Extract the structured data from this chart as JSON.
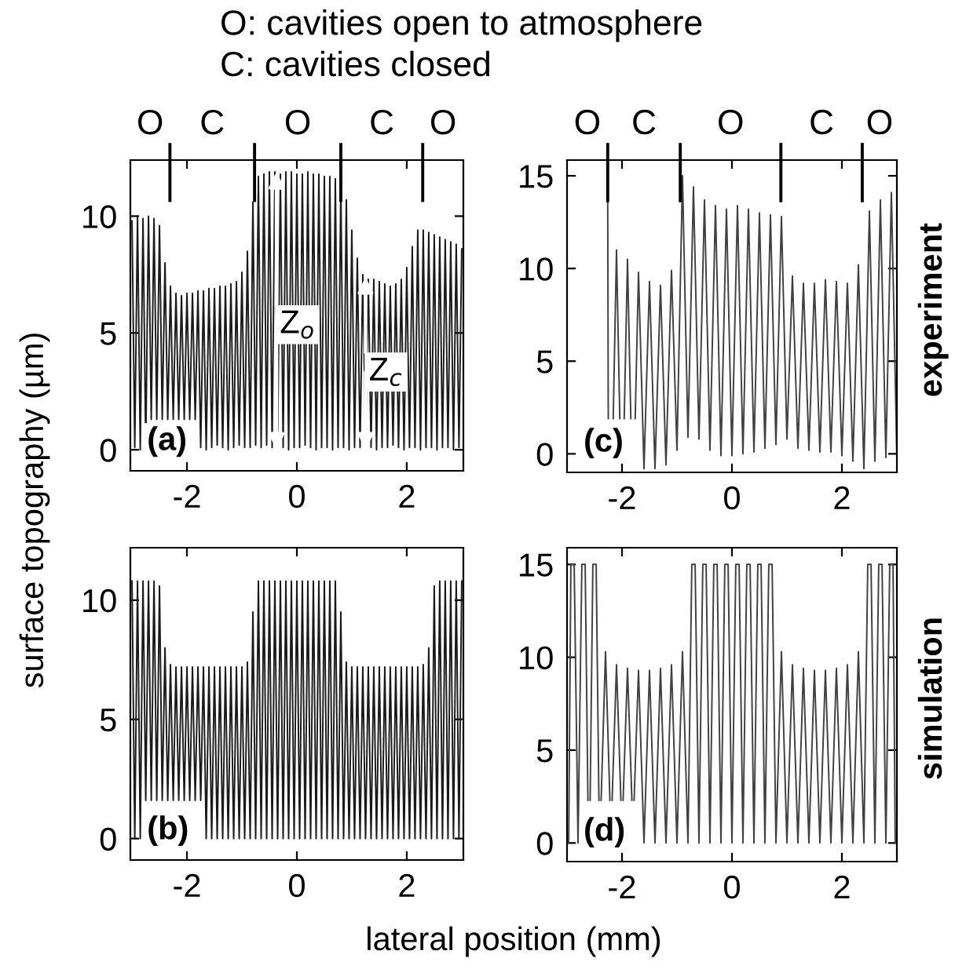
{
  "chart_data": [
    {
      "type": "line",
      "title": "O: cavities open to atmosphere\nC: cavities closed",
      "ylabel": "surface topography (µm)",
      "x": [
        -3.0,
        -2.95,
        -2.9,
        -2.85,
        -2.8,
        -2.75,
        -2.7,
        -2.65,
        -2.6,
        -2.55,
        -2.5,
        -2.45,
        -2.4,
        -2.35,
        -2.3,
        -2.25,
        -2.2,
        -2.15,
        -2.1,
        -2.05,
        -2.0,
        -1.95,
        -1.9,
        -1.85,
        -1.8,
        -1.75,
        -1.7,
        -1.65,
        -1.6,
        -1.55,
        -1.5,
        -1.45,
        -1.4,
        -1.35,
        -1.3,
        -1.25,
        -1.2,
        -1.15,
        -1.1,
        -1.05,
        -1.0,
        -0.95,
        -0.9,
        -0.85,
        -0.8,
        -0.75,
        -0.7,
        -0.65,
        -0.6,
        -0.55,
        -0.5,
        -0.45,
        -0.4,
        -0.35,
        -0.3,
        -0.25,
        -0.2,
        -0.15,
        -0.1,
        -0.05,
        0.0,
        0.05,
        0.1,
        0.15,
        0.2,
        0.25,
        0.3,
        0.35,
        0.4,
        0.45,
        0.5,
        0.55,
        0.6,
        0.65,
        0.7,
        0.75,
        0.8,
        0.85,
        0.9,
        0.95,
        1.0,
        1.05,
        1.1,
        1.15,
        1.2,
        1.25,
        1.3,
        1.35,
        1.4,
        1.45,
        1.5,
        1.55,
        1.6,
        1.65,
        1.7,
        1.75,
        1.8,
        1.85,
        1.9,
        1.95,
        2.0,
        2.05,
        2.1,
        2.15,
        2.2,
        2.25,
        2.3,
        2.35,
        2.4,
        2.45,
        2.5,
        2.55,
        2.6,
        2.65,
        2.7,
        2.75,
        2.8,
        2.85,
        2.9,
        2.95,
        3.0
      ],
      "series": [
        {
          "color": "#1a1a1a",
          "values": [
            9.8,
            0.1,
            10.0,
            0.0,
            9.9,
            0.1,
            10.0,
            1.3,
            9.9,
            1.3,
            9.6,
            1.3,
            8.0,
            1.3,
            7.0,
            1.3,
            6.7,
            1.3,
            6.6,
            1.3,
            6.7,
            1.3,
            6.7,
            1.3,
            6.8,
            0.1,
            6.8,
            0.0,
            6.9,
            0.1,
            6.9,
            0.2,
            7.0,
            0.1,
            7.0,
            0.0,
            7.1,
            0.1,
            7.2,
            0.2,
            7.6,
            0.1,
            8.5,
            0.1,
            10.6,
            0.2,
            11.7,
            0.1,
            11.8,
            0.2,
            11.9,
            0.1,
            11.9,
            0.2,
            11.8,
            0.1,
            11.9,
            0.0,
            11.9,
            0.1,
            11.8,
            0.1,
            11.8,
            0.2,
            11.9,
            0.1,
            11.8,
            0.0,
            11.8,
            0.1,
            11.7,
            0.1,
            11.7,
            0.0,
            11.6,
            0.1,
            11.3,
            0.1,
            10.7,
            0.0,
            9.4,
            0.1,
            8.2,
            0.1,
            7.5,
            0.2,
            7.3,
            0.1,
            7.3,
            0.0,
            7.2,
            0.1,
            7.1,
            0.1,
            7.0,
            0.2,
            7.1,
            0.1,
            7.3,
            0.0,
            7.8,
            0.1,
            8.7,
            0.1,
            9.4,
            0.0,
            9.4,
            0.1,
            9.3,
            0.1,
            9.2,
            0.0,
            9.1,
            0.1,
            9.0,
            0.1,
            8.9,
            0.0,
            8.8,
            0.1,
            8.6
          ]
        }
      ],
      "xlim": [
        -3.03,
        3.03
      ],
      "ylim": [
        -0.9,
        12.4
      ],
      "xticks": [
        -2,
        0,
        2
      ],
      "yticks": [
        0,
        5,
        10
      ],
      "ref_lines": [
        {
          "axis": "x",
          "value": -2.31
        },
        {
          "axis": "x",
          "value": -0.77
        },
        {
          "axis": "x",
          "value": 0.8
        },
        {
          "axis": "x",
          "value": 2.29
        }
      ],
      "annotations": [
        "(a)",
        "O",
        "C",
        "O",
        "C",
        "O",
        {
          "text": "Z$_{o}$",
          "x": -0.37,
          "y": 11.9
        },
        {
          "text": "Z$_{c}$",
          "x": 1.25,
          "y": 7.4
        }
      ]
    },
    {
      "type": "line",
      "x": [
        -2.26,
        -2.25,
        -2.2,
        -2.16,
        -2.1,
        -2.04,
        -2.0,
        -1.96,
        -1.9,
        -1.84,
        -1.8,
        -1.76,
        -1.7,
        -1.6,
        -1.5,
        -1.4,
        -1.3,
        -1.2,
        -1.1,
        -1.0,
        -0.9,
        -0.8,
        -0.7,
        -0.6,
        -0.5,
        -0.4,
        -0.3,
        -0.2,
        -0.1,
        0.0,
        0.1,
        0.2,
        0.3,
        0.4,
        0.5,
        0.6,
        0.7,
        0.8,
        0.9,
        1.0,
        1.1,
        1.2,
        1.3,
        1.4,
        1.5,
        1.6,
        1.7,
        1.8,
        1.9,
        2.0,
        2.1,
        2.2,
        2.3,
        2.4,
        2.5,
        2.6,
        2.7,
        2.8,
        2.9,
        3.0
      ],
      "series": [
        {
          "color": "#404040",
          "values": [
            13.8,
            1.9,
            null,
            1.9,
            11.0,
            1.9,
            null,
            1.9,
            10.5,
            1.9,
            null,
            1.9,
            9.8,
            -0.8,
            9.3,
            -0.8,
            9.1,
            -0.6,
            9.9,
            0.2,
            15.0,
            0.9,
            14.4,
            0.8,
            13.7,
            0.2,
            13.4,
            -0.1,
            13.2,
            -0.1,
            13.4,
            0.0,
            13.2,
            0.1,
            13.0,
            0.3,
            12.9,
            0.5,
            12.8,
            0.8,
            9.6,
            0.3,
            9.2,
            0.2,
            9.2,
            0.1,
            9.4,
            0.1,
            9.3,
            -0.1,
            9.2,
            -0.4,
            10.2,
            -0.8,
            13.1,
            -0.4,
            13.7,
            -0.2,
            14.1,
            -0.2
          ]
        }
      ],
      "xlim": [
        -3.0,
        3.0
      ],
      "ylim": [
        -1.0,
        15.85
      ],
      "xticks": [
        -2,
        0,
        2
      ],
      "yticks": [
        0,
        5,
        10,
        15
      ],
      "ref_lines": [
        {
          "axis": "x",
          "value": -2.26
        },
        {
          "axis": "x",
          "value": -0.94
        },
        {
          "axis": "x",
          "value": 0.89
        },
        {
          "axis": "x",
          "value": 2.37
        }
      ],
      "annotations": [
        "(c)",
        "O",
        "C",
        "O",
        "C",
        "O",
        "experiment"
      ]
    },
    {
      "type": "line",
      "xlabel": "lateral position (mm)",
      "x": [
        -3.0,
        -2.95,
        -2.9,
        -2.85,
        -2.8,
        -2.75,
        -2.7,
        -2.65,
        -2.6,
        -2.55,
        -2.5,
        -2.45,
        -2.4,
        -2.35,
        -2.3,
        -2.25,
        -2.2,
        -2.15,
        -2.1,
        -2.05,
        -2.0,
        -1.95,
        -1.9,
        -1.85,
        -1.8,
        -1.75,
        -1.7,
        -1.65,
        -1.6,
        -1.55,
        -1.5,
        -1.45,
        -1.4,
        -1.35,
        -1.3,
        -1.25,
        -1.2,
        -1.15,
        -1.1,
        -1.05,
        -1.0,
        -0.95,
        -0.9,
        -0.85,
        -0.8,
        -0.75,
        -0.7,
        -0.65,
        -0.6,
        -0.55,
        -0.5,
        -0.45,
        -0.4,
        -0.35,
        -0.3,
        -0.25,
        -0.2,
        -0.15,
        -0.1,
        -0.05,
        0.0,
        0.05,
        0.1,
        0.15,
        0.2,
        0.25,
        0.3,
        0.35,
        0.4,
        0.45,
        0.5,
        0.55,
        0.6,
        0.65,
        0.7,
        0.75,
        0.8,
        0.85,
        0.9,
        0.95,
        1.0,
        1.05,
        1.1,
        1.15,
        1.2,
        1.25,
        1.3,
        1.35,
        1.4,
        1.45,
        1.5,
        1.55,
        1.6,
        1.65,
        1.7,
        1.75,
        1.8,
        1.85,
        1.9,
        1.95,
        2.0,
        2.05,
        2.1,
        2.15,
        2.2,
        2.25,
        2.3,
        2.35,
        2.4,
        2.45,
        2.5,
        2.55,
        2.6,
        2.65,
        2.7,
        2.75,
        2.8,
        2.85,
        2.9,
        2.95,
        3.0
      ],
      "series": [
        {
          "color": "#1a1a1a",
          "values": [
            10.8,
            0,
            10.8,
            0,
            10.8,
            1.6,
            10.8,
            1.6,
            10.8,
            1.6,
            10.6,
            1.6,
            8.0,
            1.6,
            7.3,
            1.6,
            7.2,
            1.6,
            7.2,
            1.6,
            7.2,
            1.6,
            7.2,
            1.6,
            7.2,
            1.6,
            7.2,
            0,
            7.2,
            0,
            7.2,
            0,
            7.2,
            0,
            7.2,
            0,
            7.2,
            0,
            7.2,
            0,
            7.2,
            0,
            7.4,
            0,
            9.5,
            0,
            10.8,
            0,
            10.8,
            0,
            10.8,
            0,
            10.8,
            0,
            10.8,
            0,
            10.8,
            0,
            10.8,
            0,
            10.8,
            0,
            10.8,
            0,
            10.8,
            0,
            10.8,
            0,
            10.8,
            0,
            10.8,
            0,
            10.8,
            0,
            10.8,
            0,
            9.5,
            0,
            7.4,
            0,
            7.2,
            0,
            7.2,
            0,
            7.2,
            0,
            7.2,
            0,
            7.2,
            0,
            7.2,
            0,
            7.2,
            0,
            7.2,
            0,
            7.2,
            0,
            7.2,
            0,
            7.2,
            0,
            7.2,
            0,
            7.2,
            0,
            7.3,
            0,
            8.0,
            0,
            10.6,
            0,
            10.8,
            0,
            10.8,
            0,
            10.8,
            0,
            10.8,
            0,
            10.8
          ]
        }
      ],
      "xlim": [
        -3.03,
        3.03
      ],
      "ylim": [
        -0.9,
        12.2
      ],
      "xticks": [
        -2,
        0,
        2
      ],
      "yticks": [
        0,
        5,
        10
      ],
      "annotations": [
        "(b)"
      ]
    },
    {
      "type": "line",
      "x": [
        -2.97,
        -2.93,
        -2.87,
        -2.8,
        -2.73,
        -2.67,
        -2.62,
        -2.6,
        -2.58,
        -2.53,
        -2.47,
        -2.42,
        -2.4,
        -2.38,
        -2.3,
        -2.22,
        -2.2,
        -2.18,
        -2.1,
        -2.02,
        -2.0,
        -1.98,
        -1.9,
        -1.82,
        -1.8,
        -1.78,
        -1.7,
        -1.6,
        -1.5,
        -1.4,
        -1.3,
        -1.2,
        -1.1,
        -1.0,
        -0.9,
        -0.8,
        -0.73,
        -0.67,
        -0.6,
        -0.53,
        -0.47,
        -0.4,
        -0.33,
        -0.27,
        -0.2,
        -0.13,
        -0.07,
        0.0,
        0.07,
        0.13,
        0.2,
        0.27,
        0.33,
        0.4,
        0.47,
        0.53,
        0.6,
        0.67,
        0.73,
        0.8,
        0.9,
        1.0,
        1.1,
        1.2,
        1.3,
        1.4,
        1.5,
        1.6,
        1.7,
        1.8,
        1.9,
        2.0,
        2.1,
        2.2,
        2.3,
        2.4,
        2.47,
        2.53,
        2.6,
        2.67,
        2.73,
        2.8,
        2.87,
        2.93,
        2.97
      ],
      "series": [
        {
          "color": "#404040",
          "values": [
            0,
            15,
            15,
            0,
            15,
            15,
            2.3,
            null,
            2.3,
            15,
            15,
            2.3,
            null,
            2.3,
            10.3,
            2.3,
            null,
            2.3,
            9.6,
            2.3,
            null,
            2.3,
            9.4,
            2.3,
            null,
            2.3,
            9.3,
            0,
            9.3,
            0,
            9.4,
            0,
            9.6,
            0,
            10.3,
            0,
            15,
            15,
            0,
            15,
            15,
            0,
            15,
            15,
            0,
            15,
            15,
            0,
            15,
            15,
            0,
            15,
            15,
            0,
            15,
            15,
            0,
            15,
            15,
            0,
            10.3,
            0,
            9.6,
            0,
            9.4,
            0,
            9.3,
            0,
            9.3,
            0,
            9.4,
            0,
            9.6,
            0,
            10.3,
            0,
            15,
            15,
            0,
            15,
            15,
            0,
            15,
            15,
            0
          ]
        }
      ],
      "xlim": [
        -3.0,
        3.0
      ],
      "ylim": [
        -1.0,
        15.9
      ],
      "xticks": [
        -2,
        0,
        2
      ],
      "yticks": [
        0,
        5,
        10,
        15
      ],
      "annotations": [
        "(d)",
        "simulation"
      ]
    }
  ]
}
